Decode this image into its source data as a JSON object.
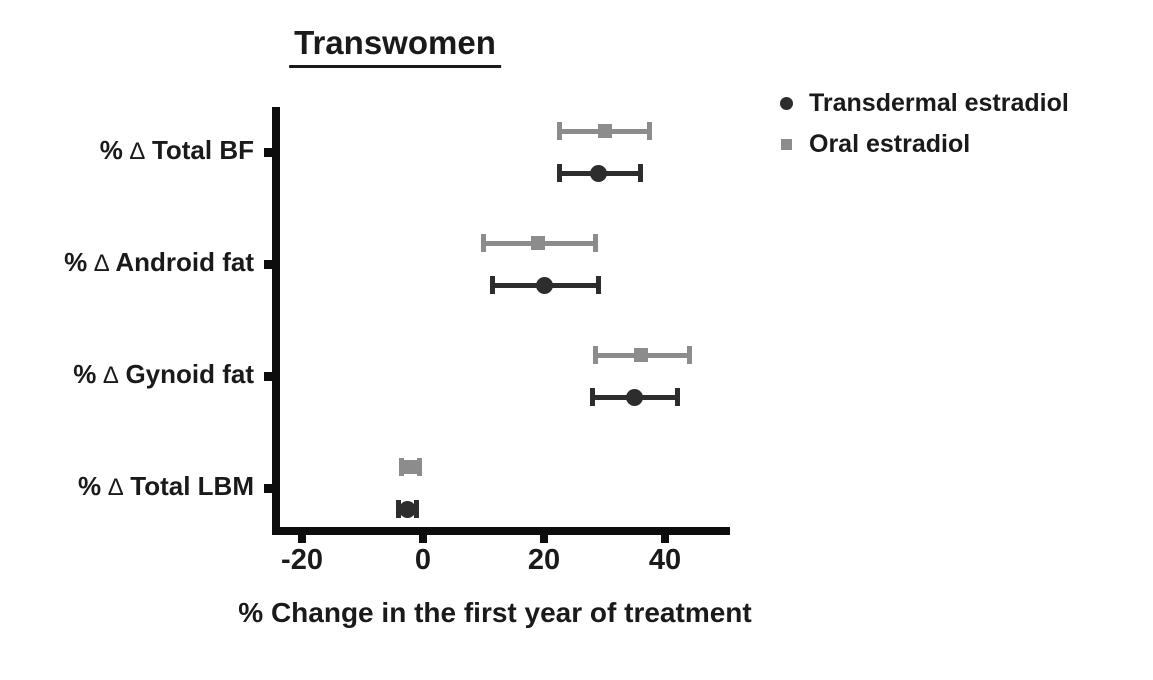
{
  "title": "Transwomen",
  "legend": {
    "items": [
      {
        "label": "Transdermal estradiol",
        "marker": "circle",
        "color": "#2d2d2d"
      },
      {
        "label": "Oral estradiol",
        "marker": "square",
        "color": "#8c8c8c"
      }
    ]
  },
  "colors": {
    "transdermal": "#2d2d2d",
    "oral": "#8c8c8c",
    "axis": "#0d0d0d",
    "text": "#1a1a1a",
    "background": "#ffffff"
  },
  "chart_data": {
    "type": "scatter",
    "subtype": "horizontal-dot-plot-with-error-bars",
    "title": "Transwomen",
    "xlabel": "% Change in the first year of treatment",
    "ylabel": "",
    "xlim": [
      -25,
      50
    ],
    "xticks": [
      -20,
      0,
      20,
      40
    ],
    "xtick_labels": [
      "-20",
      "0",
      "20",
      "40"
    ],
    "grid": false,
    "legend_position": "top-right",
    "categories": [
      "% ∆ Total BF",
      "% ∆ Android fat",
      "% ∆ Gynoid fat",
      "% ∆ Total LBM"
    ],
    "series": [
      {
        "name": "Transdermal estradiol",
        "marker": "circle",
        "color": "#2d2d2d",
        "values": [
          29,
          20,
          35,
          -2.5
        ],
        "ci_low": [
          22.5,
          11.5,
          28,
          -4
        ],
        "ci_high": [
          36,
          29,
          42,
          -1
        ]
      },
      {
        "name": "Oral estradiol",
        "marker": "square",
        "color": "#8c8c8c",
        "values": [
          30,
          19,
          36,
          -2
        ],
        "ci_low": [
          22.5,
          10,
          28.5,
          -3.5
        ],
        "ci_high": [
          37.5,
          28.5,
          44,
          -0.5
        ]
      }
    ]
  }
}
